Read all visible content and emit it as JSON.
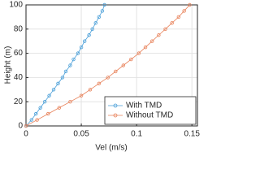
{
  "chart_data": {
    "type": "line",
    "xlabel": "Vel (m/s)",
    "ylabel": "Height (m)",
    "y": [
      0,
      5,
      10,
      15,
      20,
      25,
      30,
      35,
      40,
      45,
      50,
      55,
      60,
      65,
      70,
      75,
      80,
      85,
      90,
      95,
      100
    ],
    "series": [
      {
        "name": "With TMD",
        "color": "#4a9fd8",
        "values": [
          0,
          0.005,
          0.009,
          0.013,
          0.017,
          0.021,
          0.025,
          0.029,
          0.033,
          0.036,
          0.04,
          0.043,
          0.047,
          0.05,
          0.053,
          0.057,
          0.06,
          0.063,
          0.066,
          0.069,
          0.071
        ]
      },
      {
        "name": "Without TMD",
        "color": "#e8825a",
        "values": [
          0,
          0.01,
          0.02,
          0.03,
          0.04,
          0.05,
          0.058,
          0.066,
          0.074,
          0.081,
          0.088,
          0.095,
          0.102,
          0.108,
          0.114,
          0.12,
          0.126,
          0.132,
          0.138,
          0.143,
          0.148
        ]
      }
    ],
    "xlim": [
      0,
      0.155
    ],
    "xticks": [
      0,
      0.05,
      0.1,
      0.15
    ],
    "ylim": [
      0,
      100
    ],
    "yticks": [
      0,
      20,
      40,
      60,
      80,
      100
    ],
    "grid": true,
    "legend": "lower right"
  }
}
